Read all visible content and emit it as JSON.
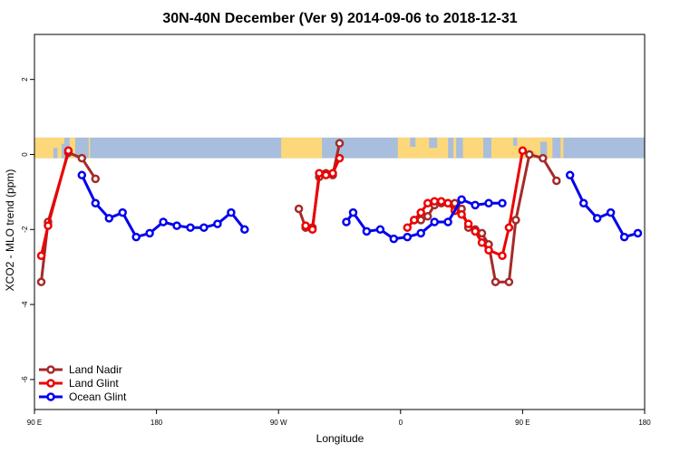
{
  "chart_data": {
    "type": "line",
    "title": "30N-40N December (Ver 9)   2014-09-06 to 2018-12-31",
    "xlabel": "Longitude",
    "ylabel": "XCO2 - MLO trend (ppm)",
    "xlim": [
      -90,
      360
    ],
    "ylim": [
      -6.8,
      3.2
    ],
    "x_ticks": [
      {
        "value": -90,
        "label": "90 E"
      },
      {
        "value": 0,
        "label": "180"
      },
      {
        "value": 90,
        "label": "90 W"
      },
      {
        "value": 180,
        "label": "0"
      },
      {
        "value": 270,
        "label": "90 E"
      },
      {
        "value": 360,
        "label": "180"
      }
    ],
    "y_ticks": [
      {
        "value": -6,
        "label": "-6"
      },
      {
        "value": -4,
        "label": "-4"
      },
      {
        "value": -2,
        "label": "-2"
      },
      {
        "value": 0,
        "label": "0"
      },
      {
        "value": 2,
        "label": "2"
      }
    ],
    "map_band": {
      "ymin": -0.1,
      "ymax": 0.45,
      "ocean_color": "#a8bedc",
      "land_color": "#fdd87a"
    },
    "series": [
      {
        "name": "Land Nadir",
        "color": "#a52a2a",
        "segments": [
          [
            [
              -85,
              -3.4
            ],
            [
              -80,
              -1.8
            ],
            [
              -65,
              0.05
            ],
            [
              -55,
              -0.1
            ],
            [
              -45,
              -0.65
            ]
          ],
          [
            [
              105,
              -1.45
            ],
            [
              110,
              -1.95
            ],
            [
              115,
              -1.95
            ],
            [
              120,
              -0.6
            ],
            [
              125,
              -0.5
            ],
            [
              130,
              -0.55
            ],
            [
              135,
              0.3
            ]
          ],
          [
            [
              190,
              -1.75
            ],
            [
              195,
              -1.75
            ],
            [
              200,
              -1.65
            ],
            [
              205,
              -1.35
            ],
            [
              210,
              -1.3
            ],
            [
              215,
              -1.3
            ],
            [
              220,
              -1.3
            ],
            [
              225,
              -1.45
            ],
            [
              230,
              -1.95
            ],
            [
              235,
              -2.0
            ],
            [
              240,
              -2.1
            ],
            [
              245,
              -2.4
            ],
            [
              250,
              -3.4
            ],
            [
              260,
              -3.4
            ],
            [
              265,
              -1.75
            ],
            [
              275,
              0.0
            ],
            [
              285,
              -0.1
            ],
            [
              295,
              -0.7
            ]
          ]
        ]
      },
      {
        "name": "Land Glint",
        "color": "#ee0000",
        "segments": [
          [
            [
              -85,
              -2.7
            ],
            [
              -80,
              -1.9
            ],
            [
              -65,
              0.1
            ]
          ],
          [
            [
              110,
              -1.9
            ],
            [
              115,
              -2.0
            ],
            [
              120,
              -0.5
            ],
            [
              125,
              -0.55
            ],
            [
              130,
              -0.5
            ],
            [
              135,
              -0.1
            ]
          ],
          [
            [
              185,
              -1.95
            ],
            [
              190,
              -1.75
            ],
            [
              195,
              -1.55
            ],
            [
              200,
              -1.3
            ],
            [
              205,
              -1.25
            ],
            [
              210,
              -1.25
            ],
            [
              215,
              -1.3
            ],
            [
              220,
              -1.5
            ],
            [
              225,
              -1.6
            ],
            [
              230,
              -1.85
            ],
            [
              235,
              -2.05
            ],
            [
              240,
              -2.35
            ],
            [
              245,
              -2.55
            ],
            [
              255,
              -2.7
            ],
            [
              260,
              -1.95
            ],
            [
              270,
              0.1
            ]
          ]
        ]
      },
      {
        "name": "Ocean Glint",
        "color": "#0000ee",
        "segments": [
          [
            [
              -55,
              -0.55
            ],
            [
              -45,
              -1.3
            ],
            [
              -35,
              -1.7
            ],
            [
              -25,
              -1.55
            ],
            [
              -15,
              -2.2
            ],
            [
              -5,
              -2.1
            ],
            [
              5,
              -1.8
            ],
            [
              15,
              -1.9
            ],
            [
              25,
              -1.95
            ],
            [
              35,
              -1.95
            ],
            [
              45,
              -1.85
            ],
            [
              55,
              -1.55
            ],
            [
              65,
              -2.0
            ]
          ],
          [
            [
              140,
              -1.8
            ],
            [
              145,
              -1.55
            ],
            [
              155,
              -2.05
            ],
            [
              165,
              -2.0
            ],
            [
              175,
              -2.25
            ],
            [
              185,
              -2.2
            ],
            [
              195,
              -2.1
            ],
            [
              205,
              -1.8
            ],
            [
              215,
              -1.8
            ],
            [
              225,
              -1.2
            ],
            [
              235,
              -1.35
            ],
            [
              245,
              -1.3
            ],
            [
              255,
              -1.3
            ]
          ],
          [
            [
              305,
              -0.55
            ],
            [
              315,
              -1.3
            ],
            [
              325,
              -1.7
            ],
            [
              335,
              -1.55
            ],
            [
              345,
              -2.2
            ],
            [
              355,
              -2.1
            ]
          ]
        ]
      }
    ],
    "legend": {
      "position": "bottom-left"
    }
  }
}
